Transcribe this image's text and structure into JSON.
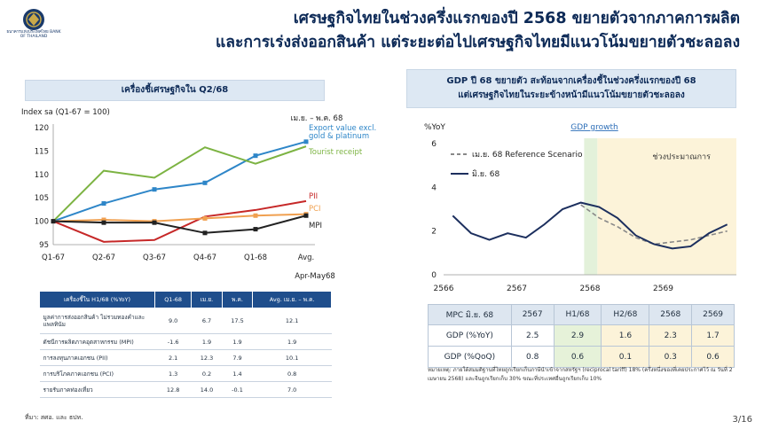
{
  "header": {
    "logo_text": "ธนาคารแห่งประเทศไทย BANK OF THAILAND",
    "title_line1": "เศรษฐกิจไทยในช่วงครึ่งแรกของปี 2568 ขยายตัวจากภาคการผลิต",
    "title_line2": "และการเร่งส่งออกสินค้า แต่ระยะต่อไปเศรษฐกิจไทยมีแนวโน้มขยายตัวชะลอลง"
  },
  "left_panel": {
    "box_title": "เครื่องชี้เศรษฐกิจใน Q2/68",
    "table": {
      "headers": [
        "เครื่องชี้ใน H1/68 (%YoY)",
        "Q1-68",
        "เม.ย.",
        "พ.ค.",
        "Avg. เม.ย. – พ.ค."
      ],
      "rows": [
        {
          "label": "มูลค่าการส่งออกสินค้า ไม่รวมทองคำและแพลทินัม",
          "values": [
            "9.0",
            "6.7",
            "17.5",
            "12.1"
          ]
        },
        {
          "label": "ดัชนีการผลิตภาคอุตสาหกรรม (MPI)",
          "values": [
            "-1.6",
            "1.9",
            "1.9",
            "1.9"
          ]
        },
        {
          "label": "การลงทุนภาคเอกชน (PII)",
          "values": [
            "2.1",
            "12.3",
            "7.9",
            "10.1"
          ]
        },
        {
          "label": "การบริโภคภาคเอกชน (PCI)",
          "values": [
            "1.3",
            "0.2",
            "1.4",
            "0.8"
          ]
        },
        {
          "label": "รายรับภาคท่องเที่ยว",
          "values": [
            "12.8",
            "14.0",
            "-0.1",
            "7.0"
          ]
        }
      ]
    },
    "source": "ที่มา: สศอ. และ ธปท."
  },
  "right_panel": {
    "box_title_line1": "GDP ปี 68 ขยายตัว สะท้อนจากเครื่องชี้ในช่วงครึ่งแรกของปี 68",
    "box_title_line2": "แต่เศรษฐกิจไทยในระยะข้างหน้ามีแนวโน้มขยายตัวชะลอลง",
    "table": {
      "headers": [
        "MPC มิ.ย. 68",
        "2567",
        "H1/68",
        "H2/68",
        "2568",
        "2569"
      ],
      "rows": [
        {
          "label": "GDP (%YoY)",
          "values": [
            "2.5",
            "2.9",
            "1.6",
            "2.3",
            "1.7"
          ]
        },
        {
          "label": "GDP (%QoQ)",
          "values": [
            "0.8",
            "0.6",
            "0.1",
            "0.3",
            "0.6"
          ]
        }
      ]
    },
    "note": "หมายเหตุ: ภายใต้สมมติฐานที่ไทยถูกเรียกเก็บภาษีนำเข้าจากสหรัฐฯ (reciprocal tariff) 18% (ครึ่งหนึ่งของที่เคยประกาศไว้ ณ วันที่ 2 เมษายน 2568) และจีนถูกเรียกเก็บ 30% ขณะที่ประเทศอื่นถูกเรียกเก็บ 10%"
  },
  "page_number": "3/16",
  "chart_data": [
    {
      "type": "line",
      "title": "",
      "ylabel": "Index sa (Q1-67 = 100)",
      "categories": [
        "Q1-67",
        "Q2-67",
        "Q3-67",
        "Q4-67",
        "Q1-68",
        "Avg."
      ],
      "category_note": "Apr-May68",
      "period_label": "เม.ย. – พ.ค. 68",
      "ylim": [
        95,
        120
      ],
      "yticks": [
        95,
        100,
        105,
        110,
        115,
        120
      ],
      "grid": false,
      "series": [
        {
          "name": "Export value excl. gold & platinum",
          "color": "#2e86c8",
          "values": [
            100,
            103.8,
            106.8,
            108.2,
            114.0,
            117.0
          ],
          "markers": true
        },
        {
          "name": "Tourist receipt",
          "color": "#7cb342",
          "values": [
            100,
            110.8,
            109.3,
            115.8,
            112.3,
            116.0
          ],
          "markers": false
        },
        {
          "name": "PII",
          "color": "#c62828",
          "values": [
            100,
            95.6,
            96.0,
            101.0,
            102.4,
            104.3
          ],
          "markers": false
        },
        {
          "name": "PCI",
          "color": "#f0a050",
          "values": [
            100,
            100.3,
            100.0,
            100.6,
            101.2,
            101.5
          ],
          "markers": true
        },
        {
          "name": "MPI",
          "color": "#222222",
          "values": [
            100,
            99.7,
            99.7,
            97.5,
            98.3,
            101.2
          ],
          "markers": true
        }
      ]
    },
    {
      "type": "line",
      "title": "GDP growth",
      "ylabel": "%YoY",
      "x_ticks": [
        "2566",
        "2567",
        "2568",
        "2569"
      ],
      "xlim": [
        2566.0,
        2570.0
      ],
      "ylim": [
        0,
        6
      ],
      "yticks": [
        0,
        2,
        4,
        6
      ],
      "forecast_label": "ช่วงประมาณการ",
      "actual_band": [
        2567.92,
        2568.1
      ],
      "forecast_band": [
        2568.1,
        2570.0
      ],
      "series": [
        {
          "name": "เม.ย. 68 Reference Scenario",
          "color": "#888888",
          "dash": true,
          "x": [
            2567.875,
            2568.125,
            2568.375,
            2568.625,
            2568.875,
            2569.125,
            2569.375,
            2569.625,
            2569.875
          ],
          "values": [
            3.2,
            2.6,
            2.2,
            1.7,
            1.4,
            1.5,
            1.6,
            1.8,
            2.0
          ]
        },
        {
          "name": "มิ.ย. 68",
          "color": "#1c2f5e",
          "dash": false,
          "x": [
            2566.125,
            2566.375,
            2566.625,
            2566.875,
            2567.125,
            2567.375,
            2567.625,
            2567.875,
            2568.125,
            2568.375,
            2568.625,
            2568.875,
            2569.125,
            2569.375,
            2569.625,
            2569.875
          ],
          "values": [
            2.7,
            1.9,
            1.6,
            1.9,
            1.7,
            2.3,
            3.0,
            3.3,
            3.1,
            2.6,
            1.8,
            1.4,
            1.2,
            1.3,
            1.9,
            2.3
          ]
        }
      ]
    }
  ]
}
